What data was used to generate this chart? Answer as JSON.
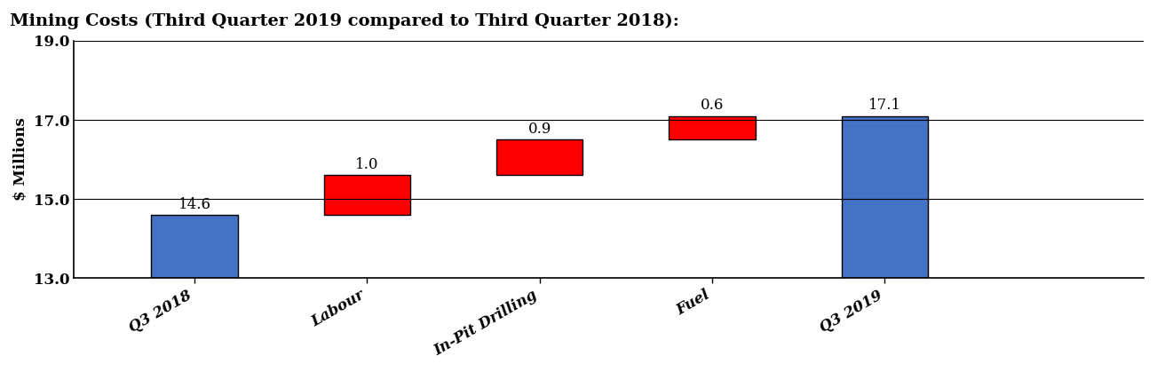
{
  "title": "Mining Costs (Third Quarter 2019 compared to Third Quarter 2018):",
  "ylabel": "$ Millions",
  "ylim": [
    13.0,
    19.0
  ],
  "yticks": [
    13.0,
    15.0,
    17.0,
    19.0
  ],
  "categories": [
    "Q3 2018",
    "Labour",
    "In-Pit Drilling",
    "Fuel",
    "Q3 2019"
  ],
  "bar_bottoms": [
    13.0,
    14.6,
    15.6,
    16.5,
    13.0
  ],
  "bar_tops": [
    14.6,
    15.6,
    16.5,
    17.1,
    17.1
  ],
  "bar_labels": [
    "14.6",
    "1.0",
    "0.9",
    "0.6",
    "17.1"
  ],
  "bar_colors": [
    "#4472C4",
    "#FF0000",
    "#FF0000",
    "#FF0000",
    "#4472C4"
  ],
  "bar_label_offsets": [
    0.07,
    0.07,
    0.07,
    0.07,
    0.07
  ],
  "background_color": "#ffffff",
  "title_fontsize": 14,
  "label_fontsize": 12,
  "tick_fontsize": 12,
  "bar_width": 0.5,
  "figsize": [
    13.03,
    4.19
  ],
  "dpi": 100,
  "xlim": [
    -0.7,
    5.5
  ]
}
